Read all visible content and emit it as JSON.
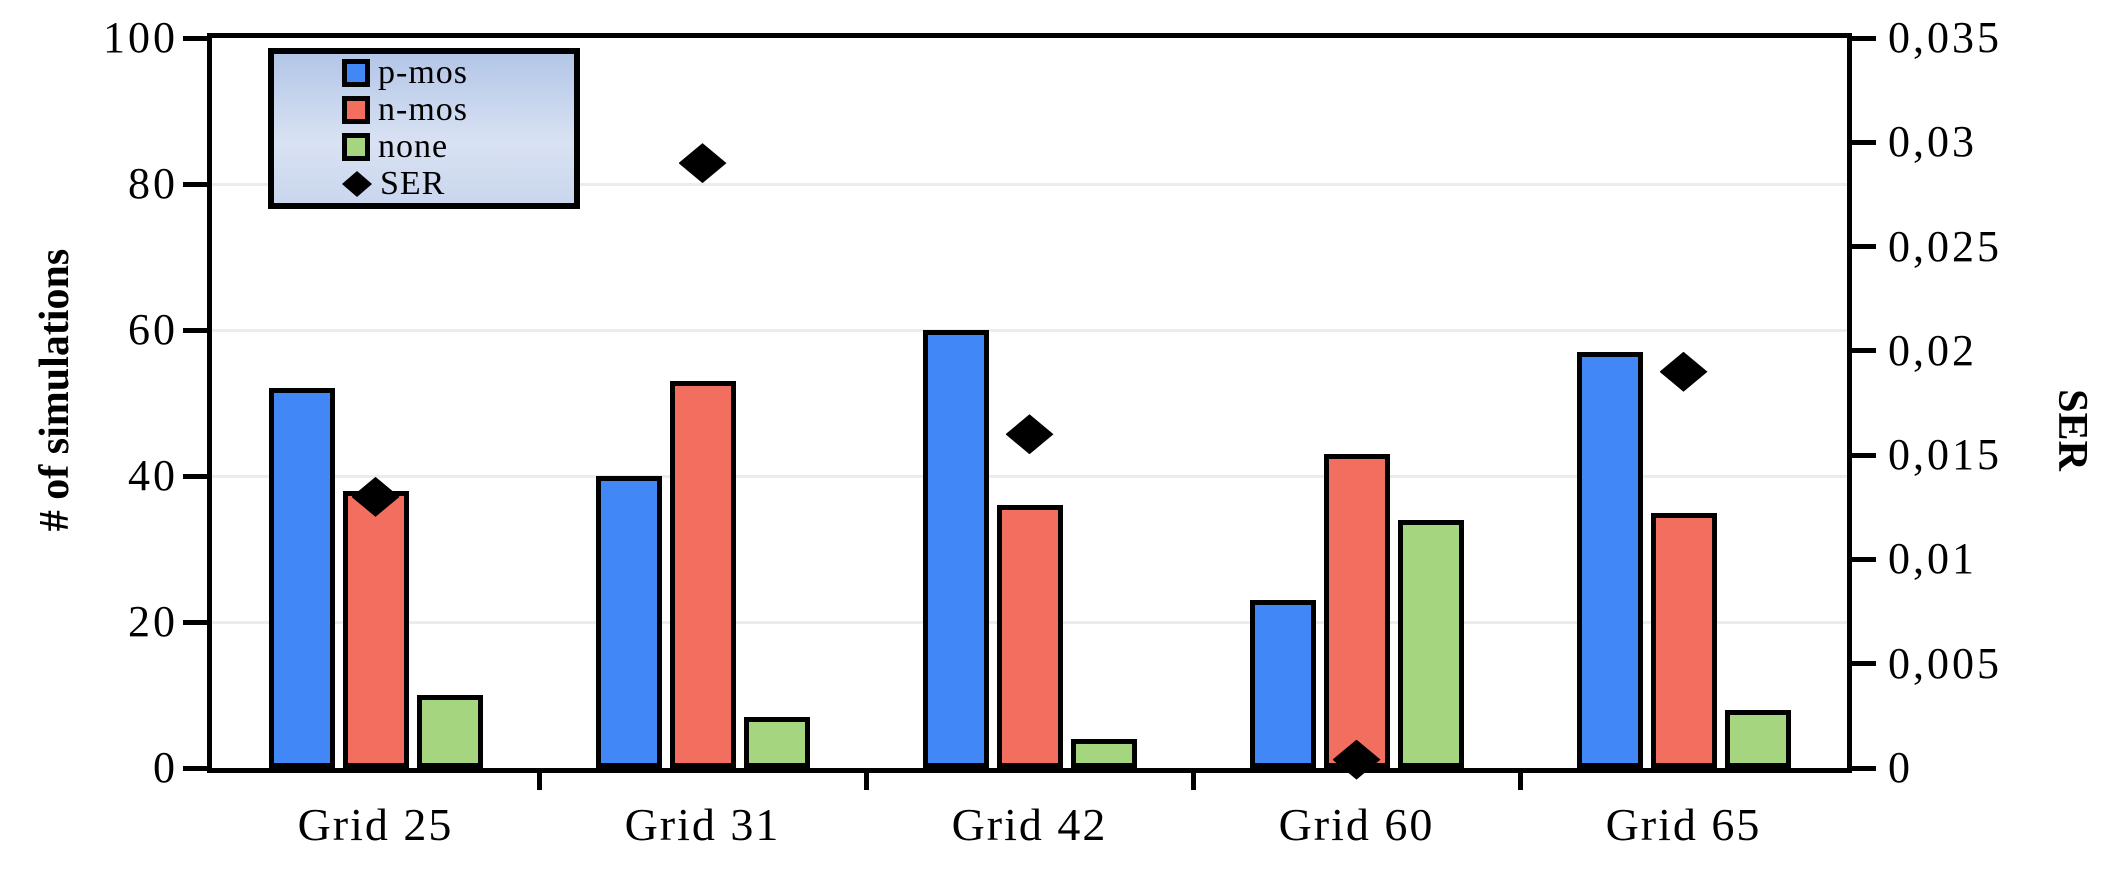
{
  "chart_data": {
    "type": "bar",
    "categories": [
      "Grid 25",
      "Grid 31",
      "Grid 42",
      "Grid 60",
      "Grid 65"
    ],
    "series": [
      {
        "name": "p-mos",
        "type": "bar",
        "axis": "left",
        "color": "#4187f5",
        "values": [
          52,
          40,
          60,
          23,
          57
        ]
      },
      {
        "name": "n-mos",
        "type": "bar",
        "axis": "left",
        "color": "#f26e5e",
        "values": [
          38,
          53,
          36,
          43,
          35
        ]
      },
      {
        "name": "none",
        "type": "bar",
        "axis": "left",
        "color": "#a5d57e",
        "values": [
          10,
          7,
          4,
          34,
          8
        ]
      },
      {
        "name": "SER",
        "type": "scatter",
        "marker": "diamond",
        "axis": "right",
        "color": "#000000",
        "values": [
          0.013,
          0.029,
          0.016,
          0.0004,
          0.019
        ]
      }
    ],
    "left_axis": {
      "label": "# of simulations",
      "min": 0,
      "max": 100,
      "step": 20,
      "tick_labels": [
        "0",
        "20",
        "40",
        "60",
        "80",
        "100"
      ]
    },
    "right_axis": {
      "label": "SER",
      "min": 0,
      "max": 0.035,
      "step": 0.005,
      "tick_labels": [
        "0",
        "0,005",
        "0,01",
        "0,015",
        "0,02",
        "0,025",
        "0,03",
        "0,035"
      ]
    },
    "grid": true,
    "gridline_values": [
      20,
      40,
      60,
      80
    ],
    "legend": {
      "position": "top-left",
      "entries": [
        "p-mos",
        "n-mos",
        "none",
        "SER"
      ]
    }
  },
  "colors": {
    "pmos": "#4187f5",
    "nmos": "#f26e5e",
    "none": "#a5d57e",
    "marker": "#000000",
    "gridline": "#ececec",
    "frame": "#000000"
  }
}
